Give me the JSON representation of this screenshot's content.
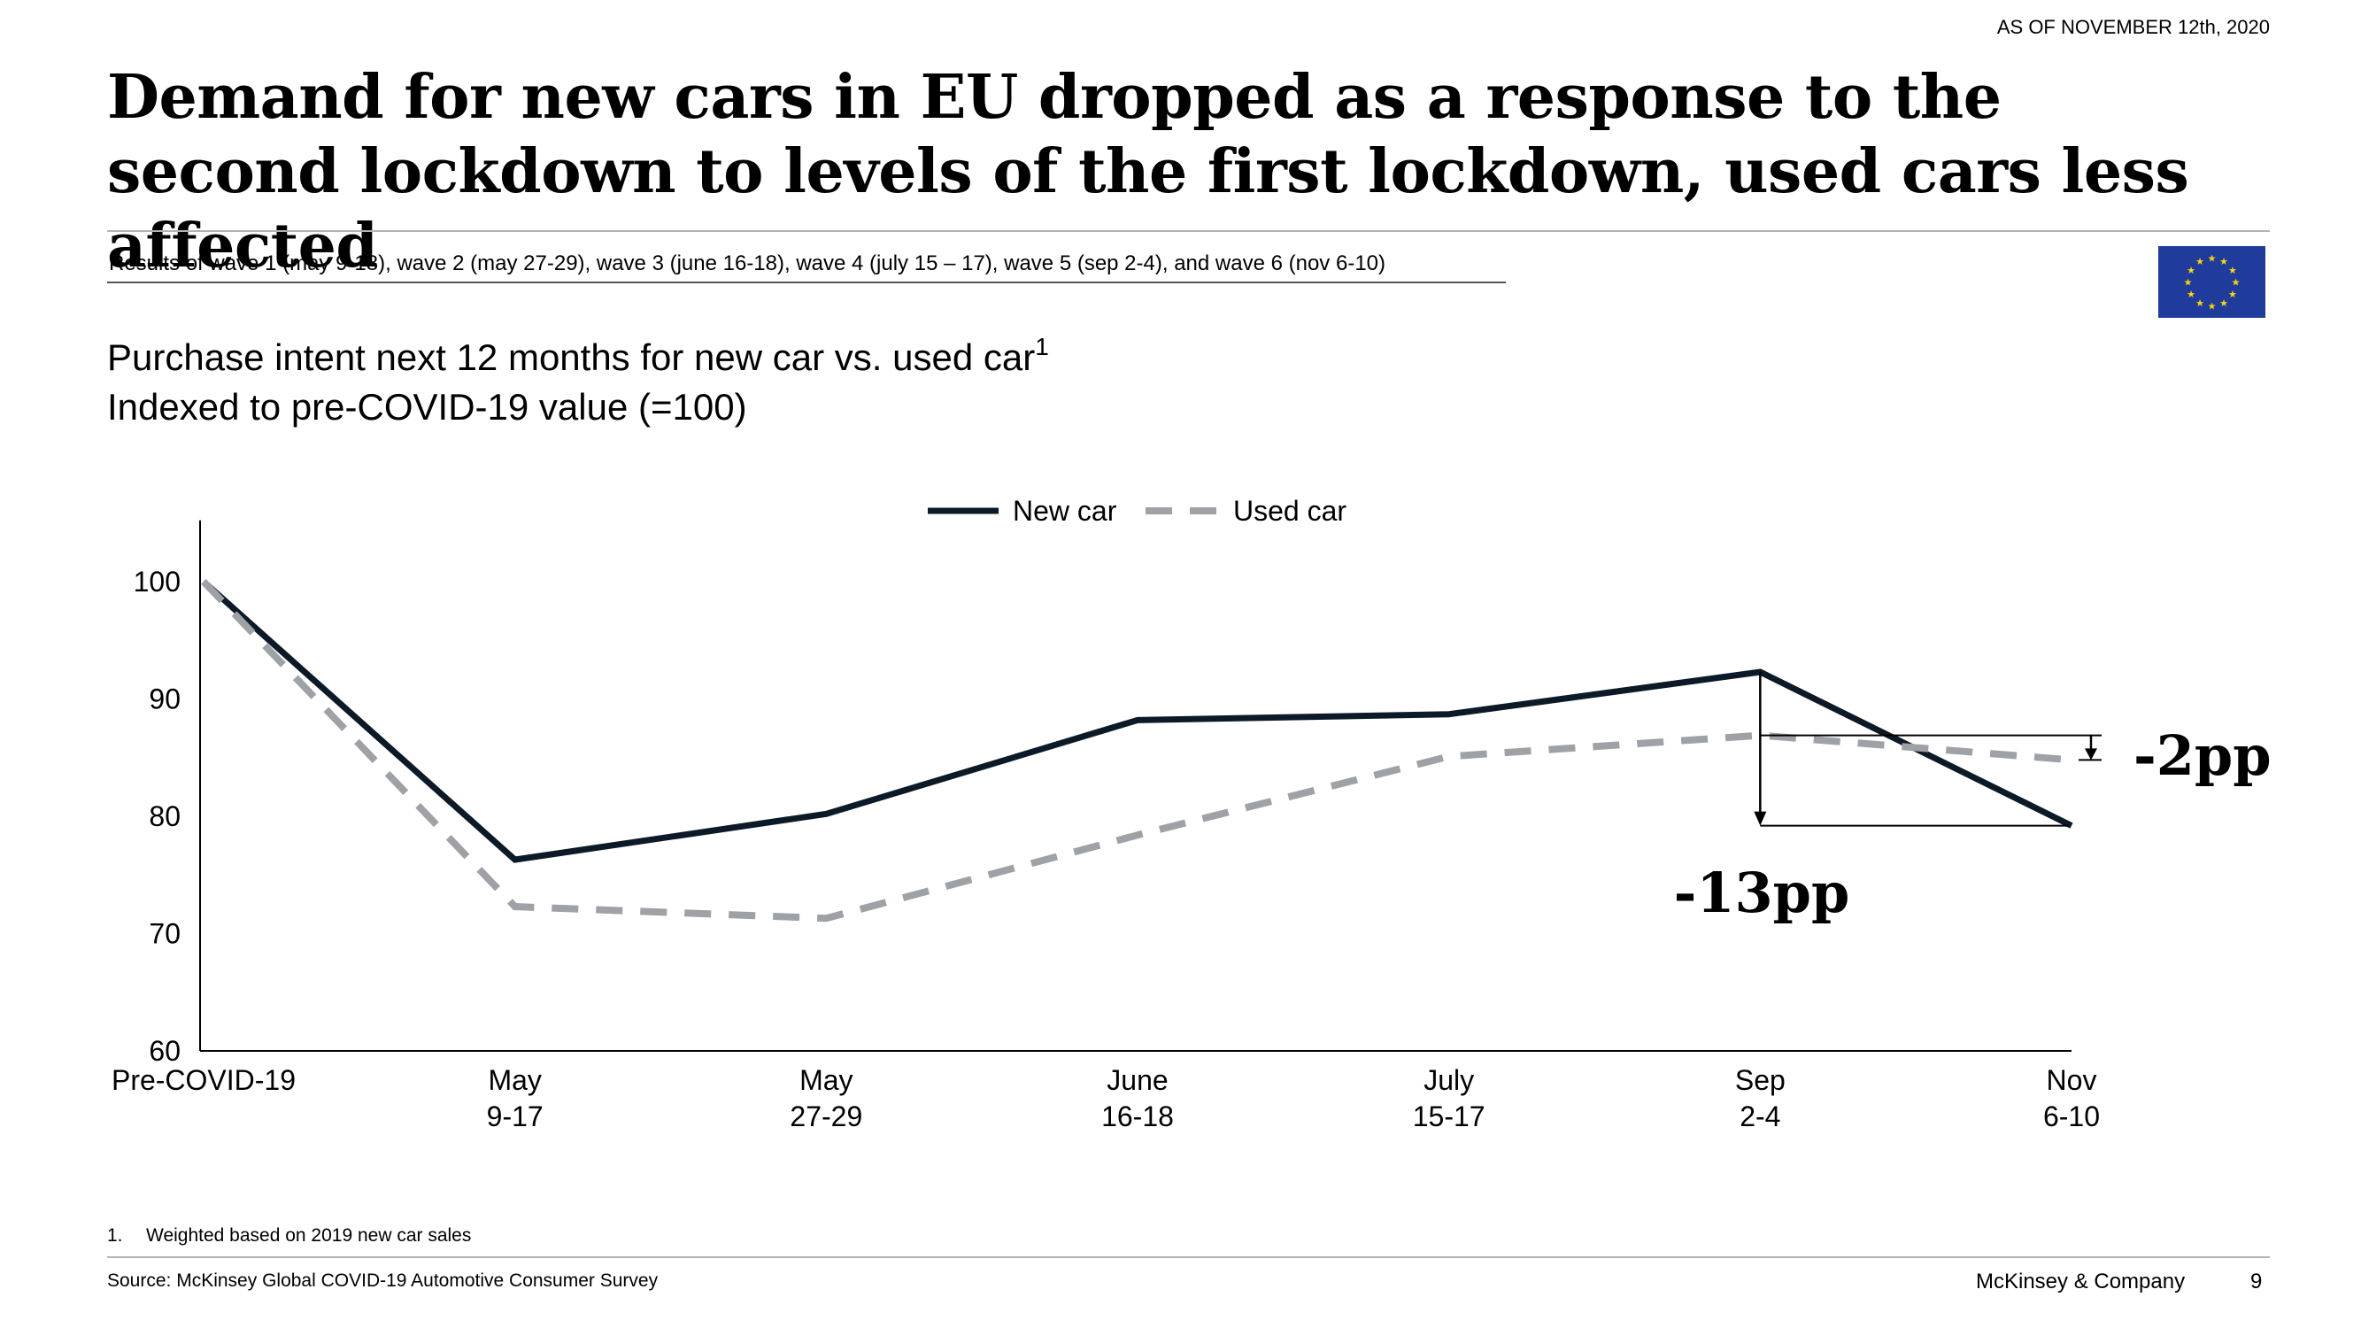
{
  "header": {
    "date": "AS OF NOVEMBER 12th, 2020",
    "title": "Demand for new cars in EU dropped as a response to the second lockdown to levels of the first lockdown, used cars less affected",
    "subtitle": "Results of wave 1 (may 9-18), wave 2 (may 27-29), wave 3 (june 16-18), wave 4 (july 15 – 17), wave 5 (sep 2-4), and wave 6 (nov 6-10)",
    "flag_icon": "eu-flag-icon"
  },
  "chart_heading": {
    "line1": "Purchase intent next 12 months for new car vs. used car",
    "line1_sup": "1",
    "line2": "Indexed to pre-COVID-19 value (=100)"
  },
  "chart_data": {
    "type": "line",
    "categories": [
      [
        "Pre-COVID-19",
        ""
      ],
      [
        "May",
        "9-17"
      ],
      [
        "May",
        "27-29"
      ],
      [
        "June",
        "16-18"
      ],
      [
        "July",
        "15-17"
      ],
      [
        "Sep",
        "2-4"
      ],
      [
        "Nov",
        "6-10"
      ]
    ],
    "ylim": [
      60,
      105
    ],
    "yticks": [
      60,
      70,
      80,
      90,
      100
    ],
    "ytick_labels": [
      "60",
      "70",
      "80",
      "90",
      "100"
    ],
    "legend_position": "top-center",
    "series": [
      {
        "name": "New car",
        "values": [
          100,
          76.3,
          80.2,
          88.2,
          88.7,
          92.3,
          79.2
        ],
        "color": "#0b1a26",
        "style": "solid"
      },
      {
        "name": "Used car",
        "values": [
          100,
          72.3,
          71.3,
          78.4,
          85.1,
          86.9,
          84.8
        ],
        "color": "#9ea2a7",
        "style": "dashed"
      }
    ],
    "annotations": [
      {
        "label": "-13pp",
        "x_index": 5,
        "from": 92.3,
        "to": 79.2
      },
      {
        "label": "-2pp",
        "x_index": 6,
        "from": 86.9,
        "to": 84.8
      }
    ]
  },
  "footer": {
    "footnote_number": "1.",
    "footnote_text": "Weighted based on 2019 new car sales",
    "source": "Source: McKinsey Global COVID-19 Automotive Consumer Survey",
    "company": "McKinsey & Company",
    "page": "9"
  }
}
